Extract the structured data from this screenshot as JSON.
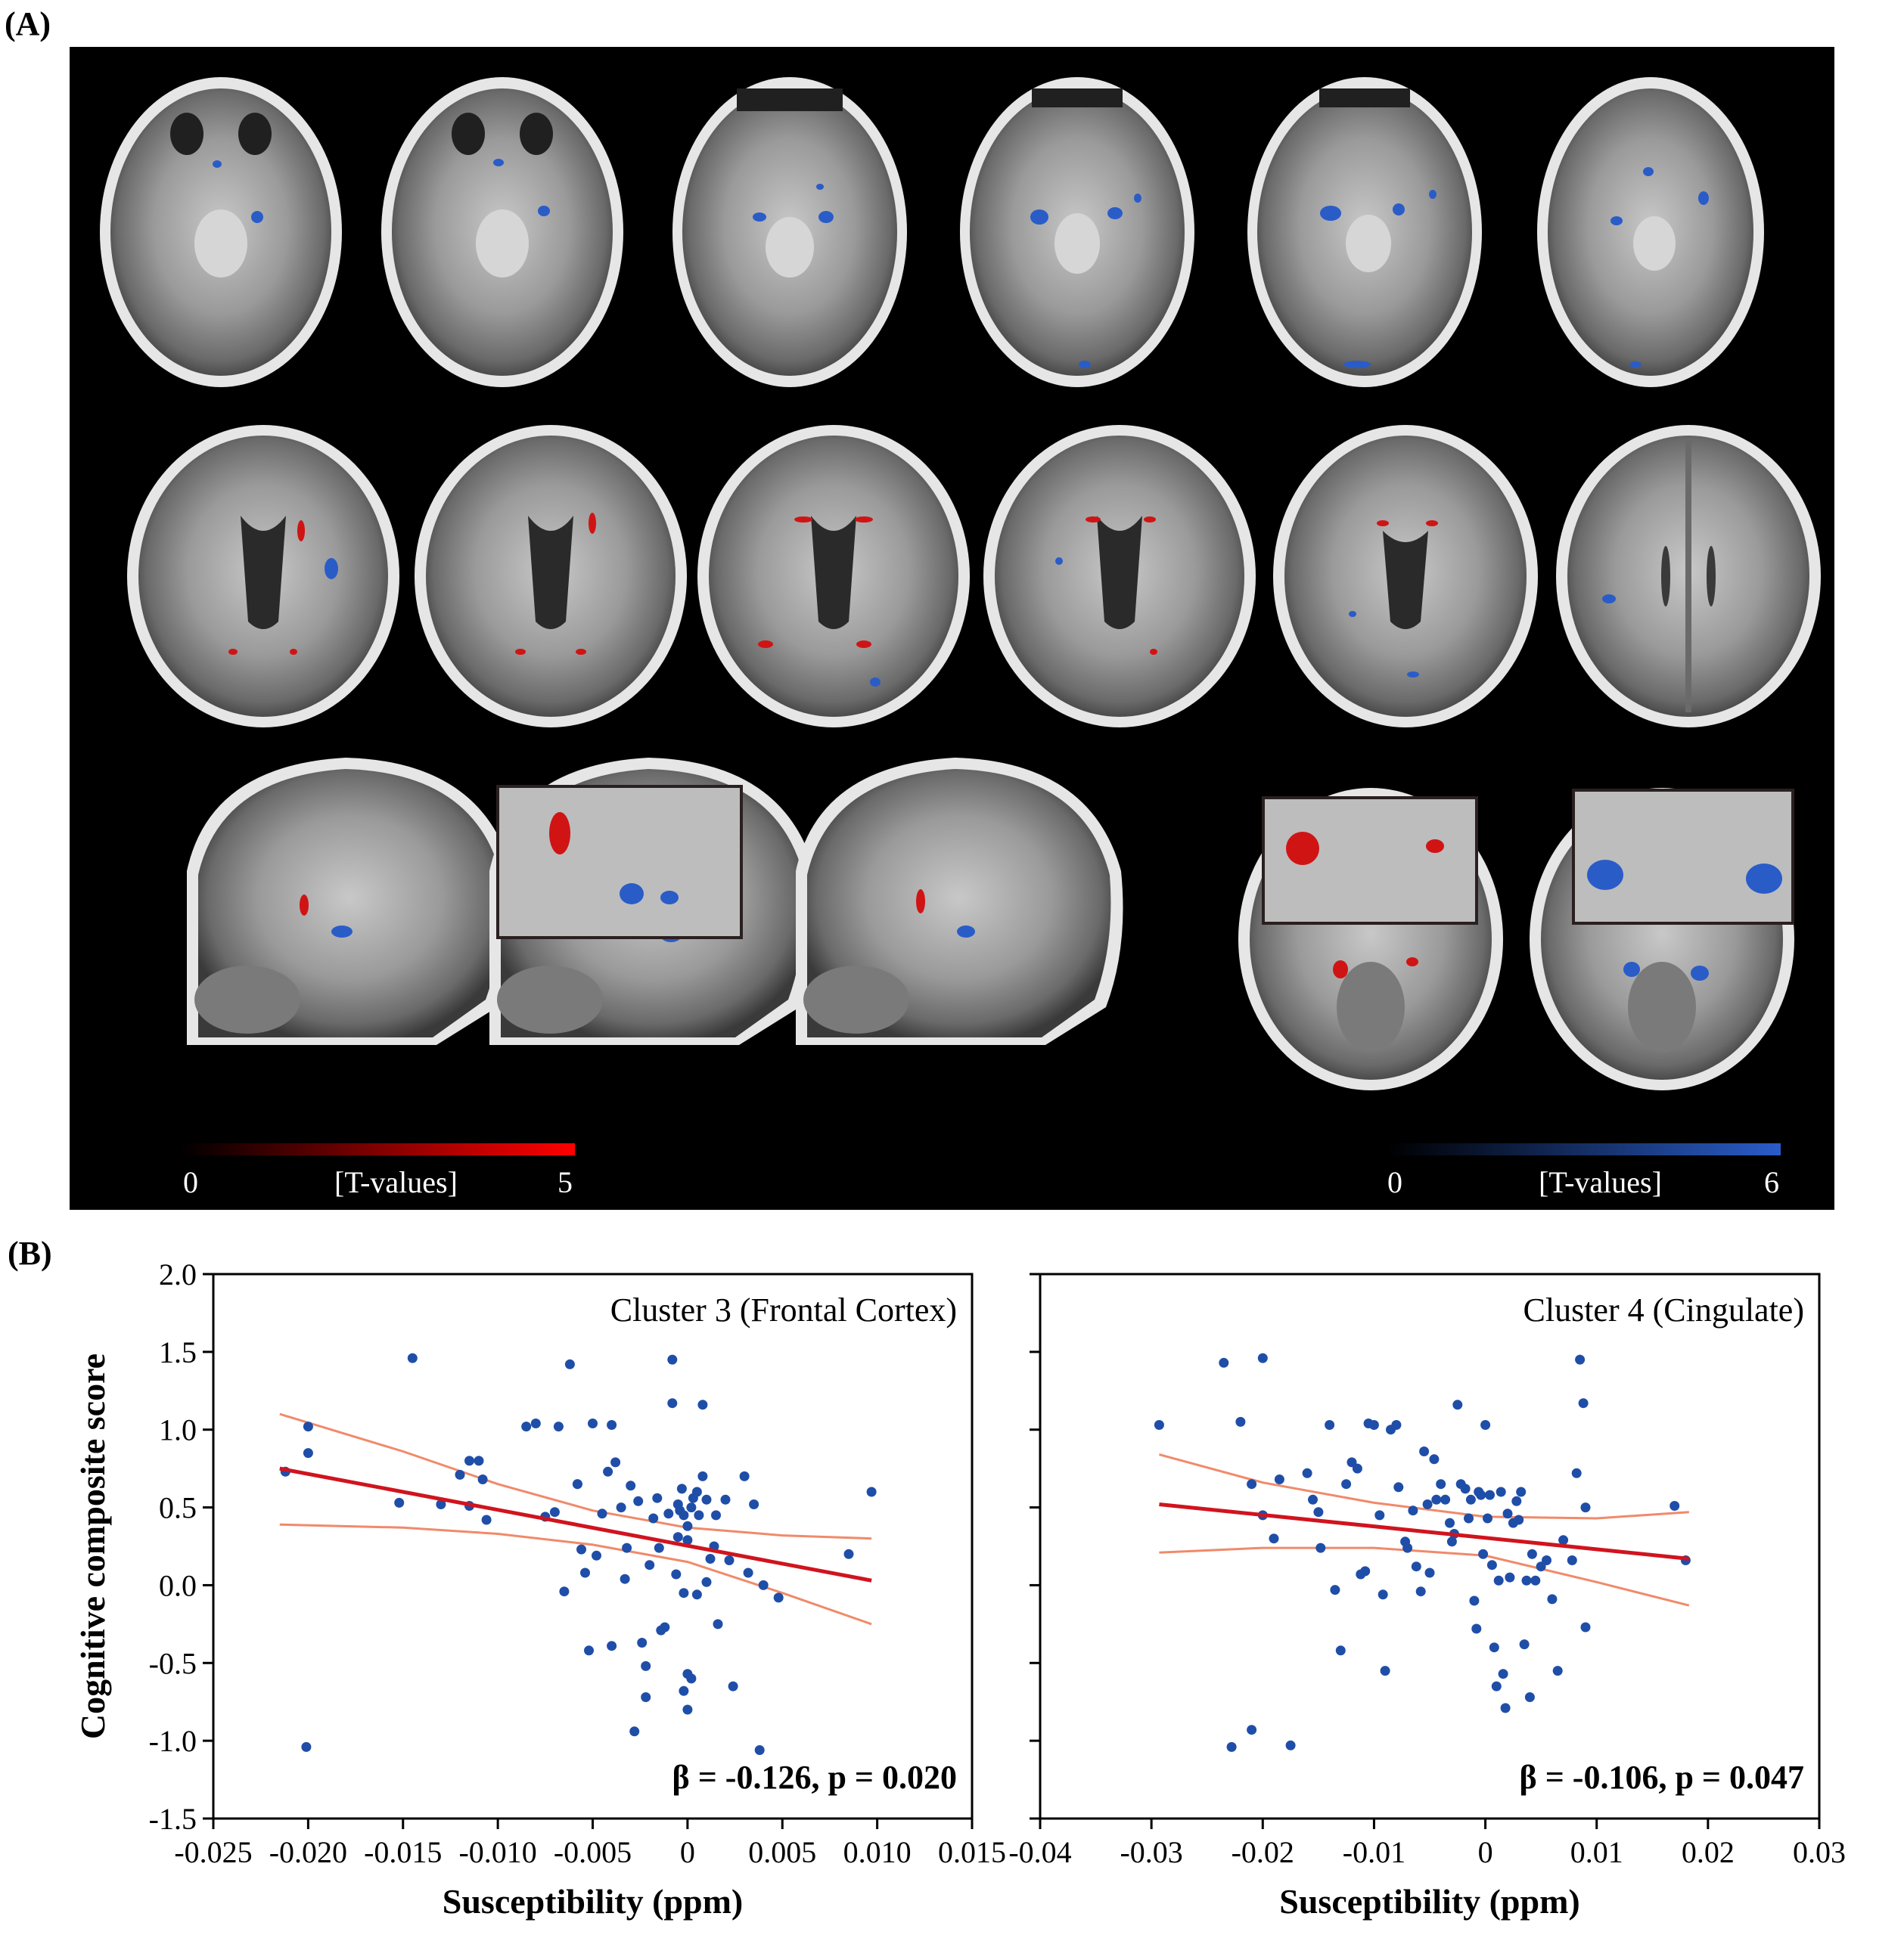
{
  "panel_a": {
    "label": "(A)",
    "colorbar_red": {
      "min": "0",
      "label": "[T-values]",
      "max": "5",
      "color_end": "#ff0000"
    },
    "colorbar_blue": {
      "min": "0",
      "label": "[T-values]",
      "max": "6",
      "color_end": "#2a5cc8"
    }
  },
  "panel_b": {
    "label": "(B)"
  },
  "colors": {
    "points": "#1f4ea8",
    "fit_line": "#d0141e",
    "ci_line": "#f08a6a"
  },
  "chart_data": [
    {
      "type": "scatter",
      "title": "Cluster 3 (Frontal Cortex)",
      "xlabel": "Susceptibility (ppm)",
      "ylabel": "Cognitive composite score",
      "annotation": "β = -0.126, p = 0.020",
      "xlim": [
        -0.025,
        0.015
      ],
      "ylim": [
        -1.5,
        2.0
      ],
      "xticks": [
        "-0.025",
        "-0.020",
        "-0.015",
        "-0.010",
        "-0.005",
        "0",
        "0.005",
        "0.010",
        "0.015"
      ],
      "xtick_values": [
        -0.025,
        -0.02,
        -0.015,
        -0.01,
        -0.005,
        0,
        0.005,
        0.01,
        0.015
      ],
      "yticks": [
        "2.0",
        "1.5",
        "1.0",
        "0.5",
        "0.0",
        "-0.5",
        "-1.0",
        "-1.5"
      ],
      "ytick_values": [
        2.0,
        1.5,
        1.0,
        0.5,
        0.0,
        -0.5,
        -1.0,
        -1.5
      ],
      "fit": {
        "x": [
          -0.0215,
          0.0097
        ],
        "y": [
          0.75,
          0.03
        ]
      },
      "ci_upper": {
        "x": [
          -0.0215,
          -0.015,
          -0.01,
          -0.005,
          0,
          0.005,
          0.0097
        ],
        "y": [
          1.1,
          0.86,
          0.65,
          0.48,
          0.37,
          0.32,
          0.3
        ]
      },
      "ci_lower": {
        "x": [
          -0.0215,
          -0.015,
          -0.01,
          -0.005,
          0,
          0.005,
          0.0097
        ],
        "y": [
          0.39,
          0.37,
          0.33,
          0.26,
          0.15,
          -0.05,
          -0.25
        ]
      },
      "points": [
        [
          -0.0212,
          0.73
        ],
        [
          -0.02,
          1.02
        ],
        [
          -0.02,
          0.85
        ],
        [
          -0.0201,
          -1.04
        ],
        [
          -0.0145,
          1.46
        ],
        [
          -0.0152,
          0.53
        ],
        [
          -0.013,
          0.52
        ],
        [
          -0.012,
          0.71
        ],
        [
          -0.0115,
          0.8
        ],
        [
          -0.011,
          0.8
        ],
        [
          -0.0108,
          0.68
        ],
        [
          -0.0106,
          0.42
        ],
        [
          -0.0115,
          0.51
        ],
        [
          -0.0085,
          1.02
        ],
        [
          -0.008,
          1.04
        ],
        [
          -0.0075,
          0.44
        ],
        [
          -0.007,
          0.47
        ],
        [
          -0.0068,
          1.02
        ],
        [
          -0.0065,
          -0.04
        ],
        [
          -0.0062,
          1.42
        ],
        [
          -0.0058,
          0.65
        ],
        [
          -0.0058,
          0.65
        ],
        [
          -0.0056,
          0.23
        ],
        [
          -0.0054,
          0.08
        ],
        [
          -0.0052,
          -0.42
        ],
        [
          -0.005,
          1.04
        ],
        [
          -0.0048,
          0.19
        ],
        [
          -0.0045,
          0.46
        ],
        [
          -0.0042,
          0.73
        ],
        [
          -0.004,
          1.03
        ],
        [
          -0.004,
          -0.39
        ],
        [
          -0.0038,
          0.79
        ],
        [
          -0.0035,
          0.5
        ],
        [
          -0.0033,
          0.04
        ],
        [
          -0.0032,
          0.24
        ],
        [
          -0.003,
          0.64
        ],
        [
          -0.0028,
          -0.94
        ],
        [
          -0.0026,
          0.54
        ],
        [
          -0.0024,
          -0.37
        ],
        [
          -0.0022,
          -0.72
        ],
        [
          -0.0022,
          -0.52
        ],
        [
          -0.002,
          0.13
        ],
        [
          -0.0018,
          0.43
        ],
        [
          -0.0016,
          0.56
        ],
        [
          -0.0015,
          0.24
        ],
        [
          -0.0014,
          -0.29
        ],
        [
          -0.0012,
          -0.27
        ],
        [
          -0.001,
          0.46
        ],
        [
          -0.0008,
          1.45
        ],
        [
          -0.0008,
          1.17
        ],
        [
          -0.0006,
          0.07
        ],
        [
          -0.0005,
          0.31
        ],
        [
          -0.0004,
          0.48
        ],
        [
          -0.0003,
          0.62
        ],
        [
          -0.0002,
          0.45
        ],
        [
          -0.0002,
          -0.05
        ],
        [
          0.0,
          0.29
        ],
        [
          0.0,
          0.38
        ],
        [
          0.0002,
          0.5
        ],
        [
          0.0003,
          0.56
        ],
        [
          0.0005,
          -0.06
        ],
        [
          0.0006,
          0.45
        ],
        [
          0.0008,
          1.16
        ],
        [
          0.0008,
          0.7
        ],
        [
          0.001,
          0.55
        ],
        [
          0.001,
          0.02
        ],
        [
          0.0012,
          0.17
        ],
        [
          0.0014,
          0.25
        ],
        [
          0.0015,
          0.45
        ],
        [
          0.0016,
          -0.25
        ],
        [
          -0.0005,
          0.52
        ],
        [
          0.0,
          -0.57
        ],
        [
          -0.0002,
          -0.68
        ],
        [
          0.0002,
          -0.6
        ],
        [
          0.0,
          -0.8
        ],
        [
          0.0005,
          0.6
        ],
        [
          0.002,
          0.55
        ],
        [
          0.0022,
          0.16
        ],
        [
          0.0024,
          -0.65
        ],
        [
          0.003,
          0.7
        ],
        [
          0.0032,
          0.08
        ],
        [
          0.0035,
          0.52
        ],
        [
          0.0038,
          -1.06
        ],
        [
          0.004,
          0.0
        ],
        [
          0.0048,
          -0.08
        ],
        [
          0.0085,
          0.2
        ],
        [
          0.0097,
          0.6
        ]
      ]
    },
    {
      "type": "scatter",
      "title": "Cluster 4 (Cingulate)",
      "xlabel": "Susceptibility (ppm)",
      "ylabel": "",
      "annotation": "β = -0.106, p = 0.047",
      "xlim": [
        -0.04,
        0.03
      ],
      "ylim": [
        -1.5,
        2.0
      ],
      "xticks": [
        "-0.04",
        "-0.03",
        "-0.02",
        "-0.01",
        "0",
        "0.01",
        "0.02",
        "0.03"
      ],
      "xtick_values": [
        -0.04,
        -0.03,
        -0.02,
        -0.01,
        0,
        0.01,
        0.02,
        0.03
      ],
      "yticks": [],
      "ytick_values": [
        2.0,
        1.5,
        1.0,
        0.5,
        0.0,
        -0.5,
        -1.0,
        -1.5
      ],
      "fit": {
        "x": [
          -0.0293,
          0.0183
        ],
        "y": [
          0.52,
          0.17
        ]
      },
      "ci_upper": {
        "x": [
          -0.0293,
          -0.02,
          -0.01,
          0,
          0.01,
          0.0183
        ],
        "y": [
          0.84,
          0.66,
          0.53,
          0.44,
          0.43,
          0.47
        ]
      },
      "ci_lower": {
        "x": [
          -0.0293,
          -0.02,
          -0.01,
          0,
          0.01,
          0.0183
        ],
        "y": [
          0.21,
          0.24,
          0.24,
          0.19,
          0.02,
          -0.13
        ]
      },
      "points": [
        [
          -0.0293,
          1.03
        ],
        [
          -0.0235,
          1.43
        ],
        [
          -0.022,
          1.05
        ],
        [
          -0.02,
          1.46
        ],
        [
          -0.021,
          0.65
        ],
        [
          -0.02,
          0.45
        ],
        [
          -0.019,
          0.3
        ],
        [
          -0.0185,
          0.68
        ],
        [
          -0.0228,
          -1.04
        ],
        [
          -0.021,
          -0.93
        ],
        [
          -0.0175,
          -1.03
        ],
        [
          -0.016,
          0.72
        ],
        [
          -0.0155,
          0.55
        ],
        [
          -0.015,
          0.47
        ],
        [
          -0.0148,
          0.24
        ],
        [
          -0.014,
          1.03
        ],
        [
          -0.0135,
          -0.03
        ],
        [
          -0.013,
          -0.42
        ],
        [
          -0.0125,
          0.65
        ],
        [
          -0.012,
          0.79
        ],
        [
          -0.0115,
          0.75
        ],
        [
          -0.0112,
          0.07
        ],
        [
          -0.0108,
          0.09
        ],
        [
          -0.0105,
          1.04
        ],
        [
          -0.01,
          1.03
        ],
        [
          -0.0095,
          0.45
        ],
        [
          -0.0092,
          -0.06
        ],
        [
          -0.009,
          -0.55
        ],
        [
          -0.0085,
          1.0
        ],
        [
          -0.008,
          1.03
        ],
        [
          -0.0078,
          0.63
        ],
        [
          -0.0072,
          0.28
        ],
        [
          -0.007,
          0.24
        ],
        [
          -0.0065,
          0.48
        ],
        [
          -0.0062,
          0.12
        ],
        [
          -0.0058,
          -0.04
        ],
        [
          -0.0055,
          0.86
        ],
        [
          -0.0052,
          0.52
        ],
        [
          -0.005,
          0.08
        ],
        [
          -0.0046,
          0.81
        ],
        [
          -0.0044,
          0.55
        ],
        [
          -0.004,
          0.65
        ],
        [
          -0.0036,
          0.55
        ],
        [
          -0.0032,
          0.4
        ],
        [
          -0.003,
          0.28
        ],
        [
          -0.0028,
          0.33
        ],
        [
          -0.0025,
          1.16
        ],
        [
          -0.0022,
          0.65
        ],
        [
          -0.0018,
          0.62
        ],
        [
          -0.0015,
          0.43
        ],
        [
          -0.0013,
          0.55
        ],
        [
          -0.001,
          -0.1
        ],
        [
          -0.0008,
          -0.28
        ],
        [
          -0.0006,
          0.6
        ],
        [
          -0.0004,
          0.58
        ],
        [
          -0.0002,
          0.2
        ],
        [
          0.0,
          1.03
        ],
        [
          0.0002,
          0.43
        ],
        [
          0.0004,
          0.58
        ],
        [
          0.0006,
          0.13
        ],
        [
          0.0008,
          -0.4
        ],
        [
          0.001,
          -0.65
        ],
        [
          0.0012,
          0.03
        ],
        [
          0.0014,
          0.6
        ],
        [
          0.0016,
          -0.57
        ],
        [
          0.0018,
          -0.79
        ],
        [
          0.002,
          0.46
        ],
        [
          0.0022,
          0.05
        ],
        [
          0.0025,
          0.4
        ],
        [
          0.0028,
          0.54
        ],
        [
          0.003,
          0.42
        ],
        [
          0.0032,
          0.6
        ],
        [
          0.0035,
          -0.38
        ],
        [
          0.0037,
          0.03
        ],
        [
          0.004,
          -0.72
        ],
        [
          0.0042,
          0.2
        ],
        [
          0.0045,
          0.03
        ],
        [
          0.005,
          0.12
        ],
        [
          0.0055,
          0.16
        ],
        [
          0.006,
          -0.09
        ],
        [
          0.0065,
          -0.55
        ],
        [
          0.007,
          0.29
        ],
        [
          0.0078,
          0.16
        ],
        [
          0.0082,
          0.72
        ],
        [
          0.0085,
          1.45
        ],
        [
          0.0088,
          1.17
        ],
        [
          0.009,
          0.5
        ],
        [
          0.009,
          -0.27
        ],
        [
          0.017,
          0.51
        ],
        [
          0.018,
          0.16
        ]
      ]
    }
  ]
}
